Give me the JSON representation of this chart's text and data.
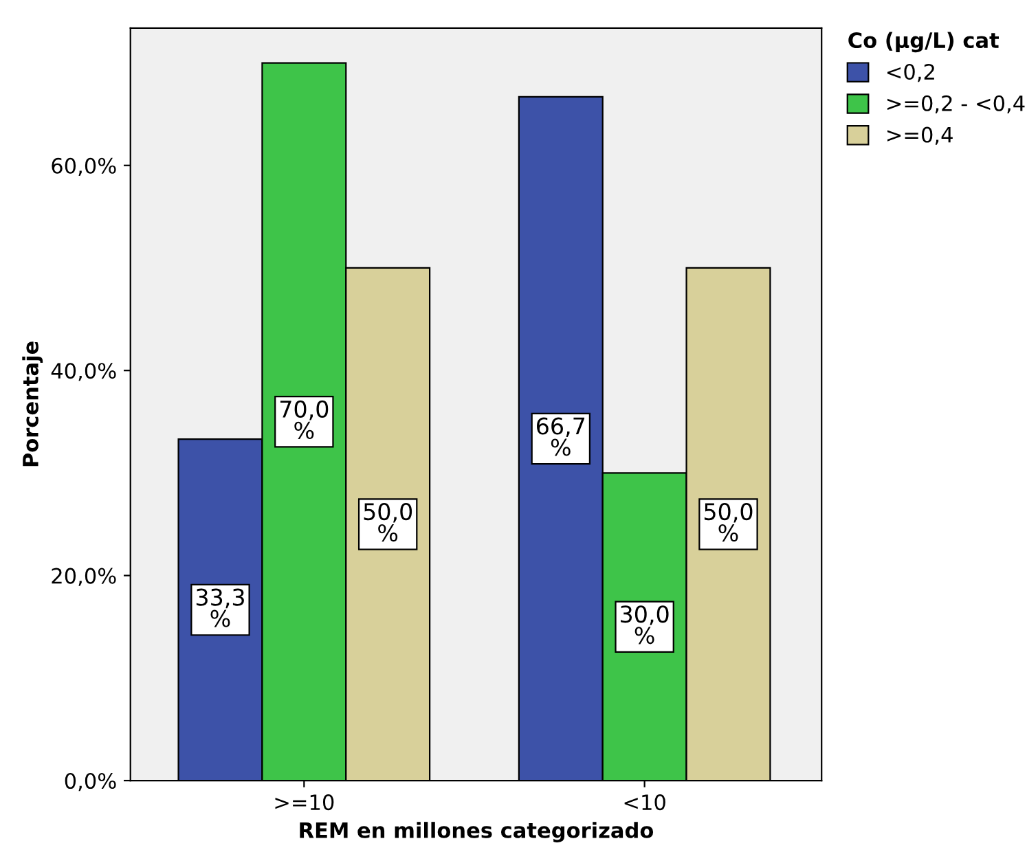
{
  "chart_data": {
    "type": "bar",
    "xlabel": "REM en millones categorizado",
    "ylabel": "Porcentaje",
    "legend_title": "Co (µg/L) cat",
    "categories": [
      ">=10",
      "<10"
    ],
    "series": [
      {
        "name": "<0,2",
        "color": "#3d52a8",
        "values": [
          33.3,
          66.7
        ],
        "value_labels": [
          "33,3\n%",
          "66,7\n%"
        ]
      },
      {
        "name": ">=0,2 - <0,4",
        "color": "#3ec449",
        "values": [
          70.0,
          30.0
        ],
        "value_labels": [
          "70,0\n%",
          "30,0\n%"
        ]
      },
      {
        "name": ">=0,4",
        "color": "#d8d09a",
        "values": [
          50.0,
          50.0
        ],
        "value_labels": [
          "50,0\n%",
          "50,0\n%"
        ]
      }
    ],
    "ylim": [
      0,
      73.4
    ],
    "yticks": [
      {
        "value": 0,
        "label": "0,0%"
      },
      {
        "value": 20,
        "label": "20,0%"
      },
      {
        "value": 40,
        "label": "40,0%"
      },
      {
        "value": 60,
        "label": "60,0%"
      }
    ],
    "legend": "top right",
    "grid": false
  }
}
